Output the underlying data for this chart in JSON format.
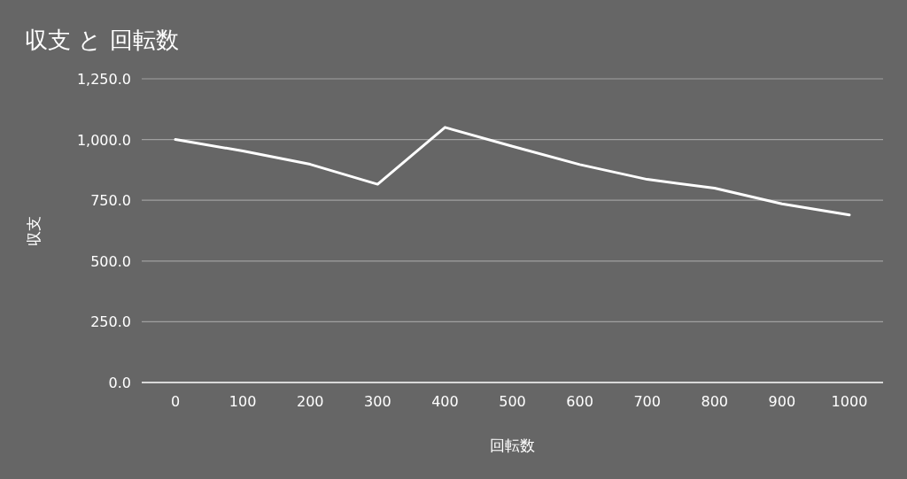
{
  "chart_data": {
    "type": "line",
    "title": "収支 と 回転数",
    "xlabel": "回転数",
    "ylabel": "収支",
    "categories": [
      "0",
      "100",
      "200",
      "300",
      "400",
      "500",
      "600",
      "700",
      "800",
      "900",
      "1000"
    ],
    "series": [
      {
        "color": "#ffffff",
        "values": [
          1000,
          953,
          898,
          816,
          1050,
          972,
          897,
          836,
          800,
          735,
          690
        ]
      }
    ],
    "ylim": [
      0,
      1250
    ],
    "yticks": [
      {
        "value": 0,
        "label": "0.0"
      },
      {
        "value": 250,
        "label": "250.0"
      },
      {
        "value": 500,
        "label": "500.0"
      },
      {
        "value": 750,
        "label": "750.0"
      },
      {
        "value": 1000,
        "label": "1,000.0"
      },
      {
        "value": 1250,
        "label": "1,250.0"
      }
    ],
    "grid": "y",
    "marker": "none",
    "line_style": "solid"
  }
}
